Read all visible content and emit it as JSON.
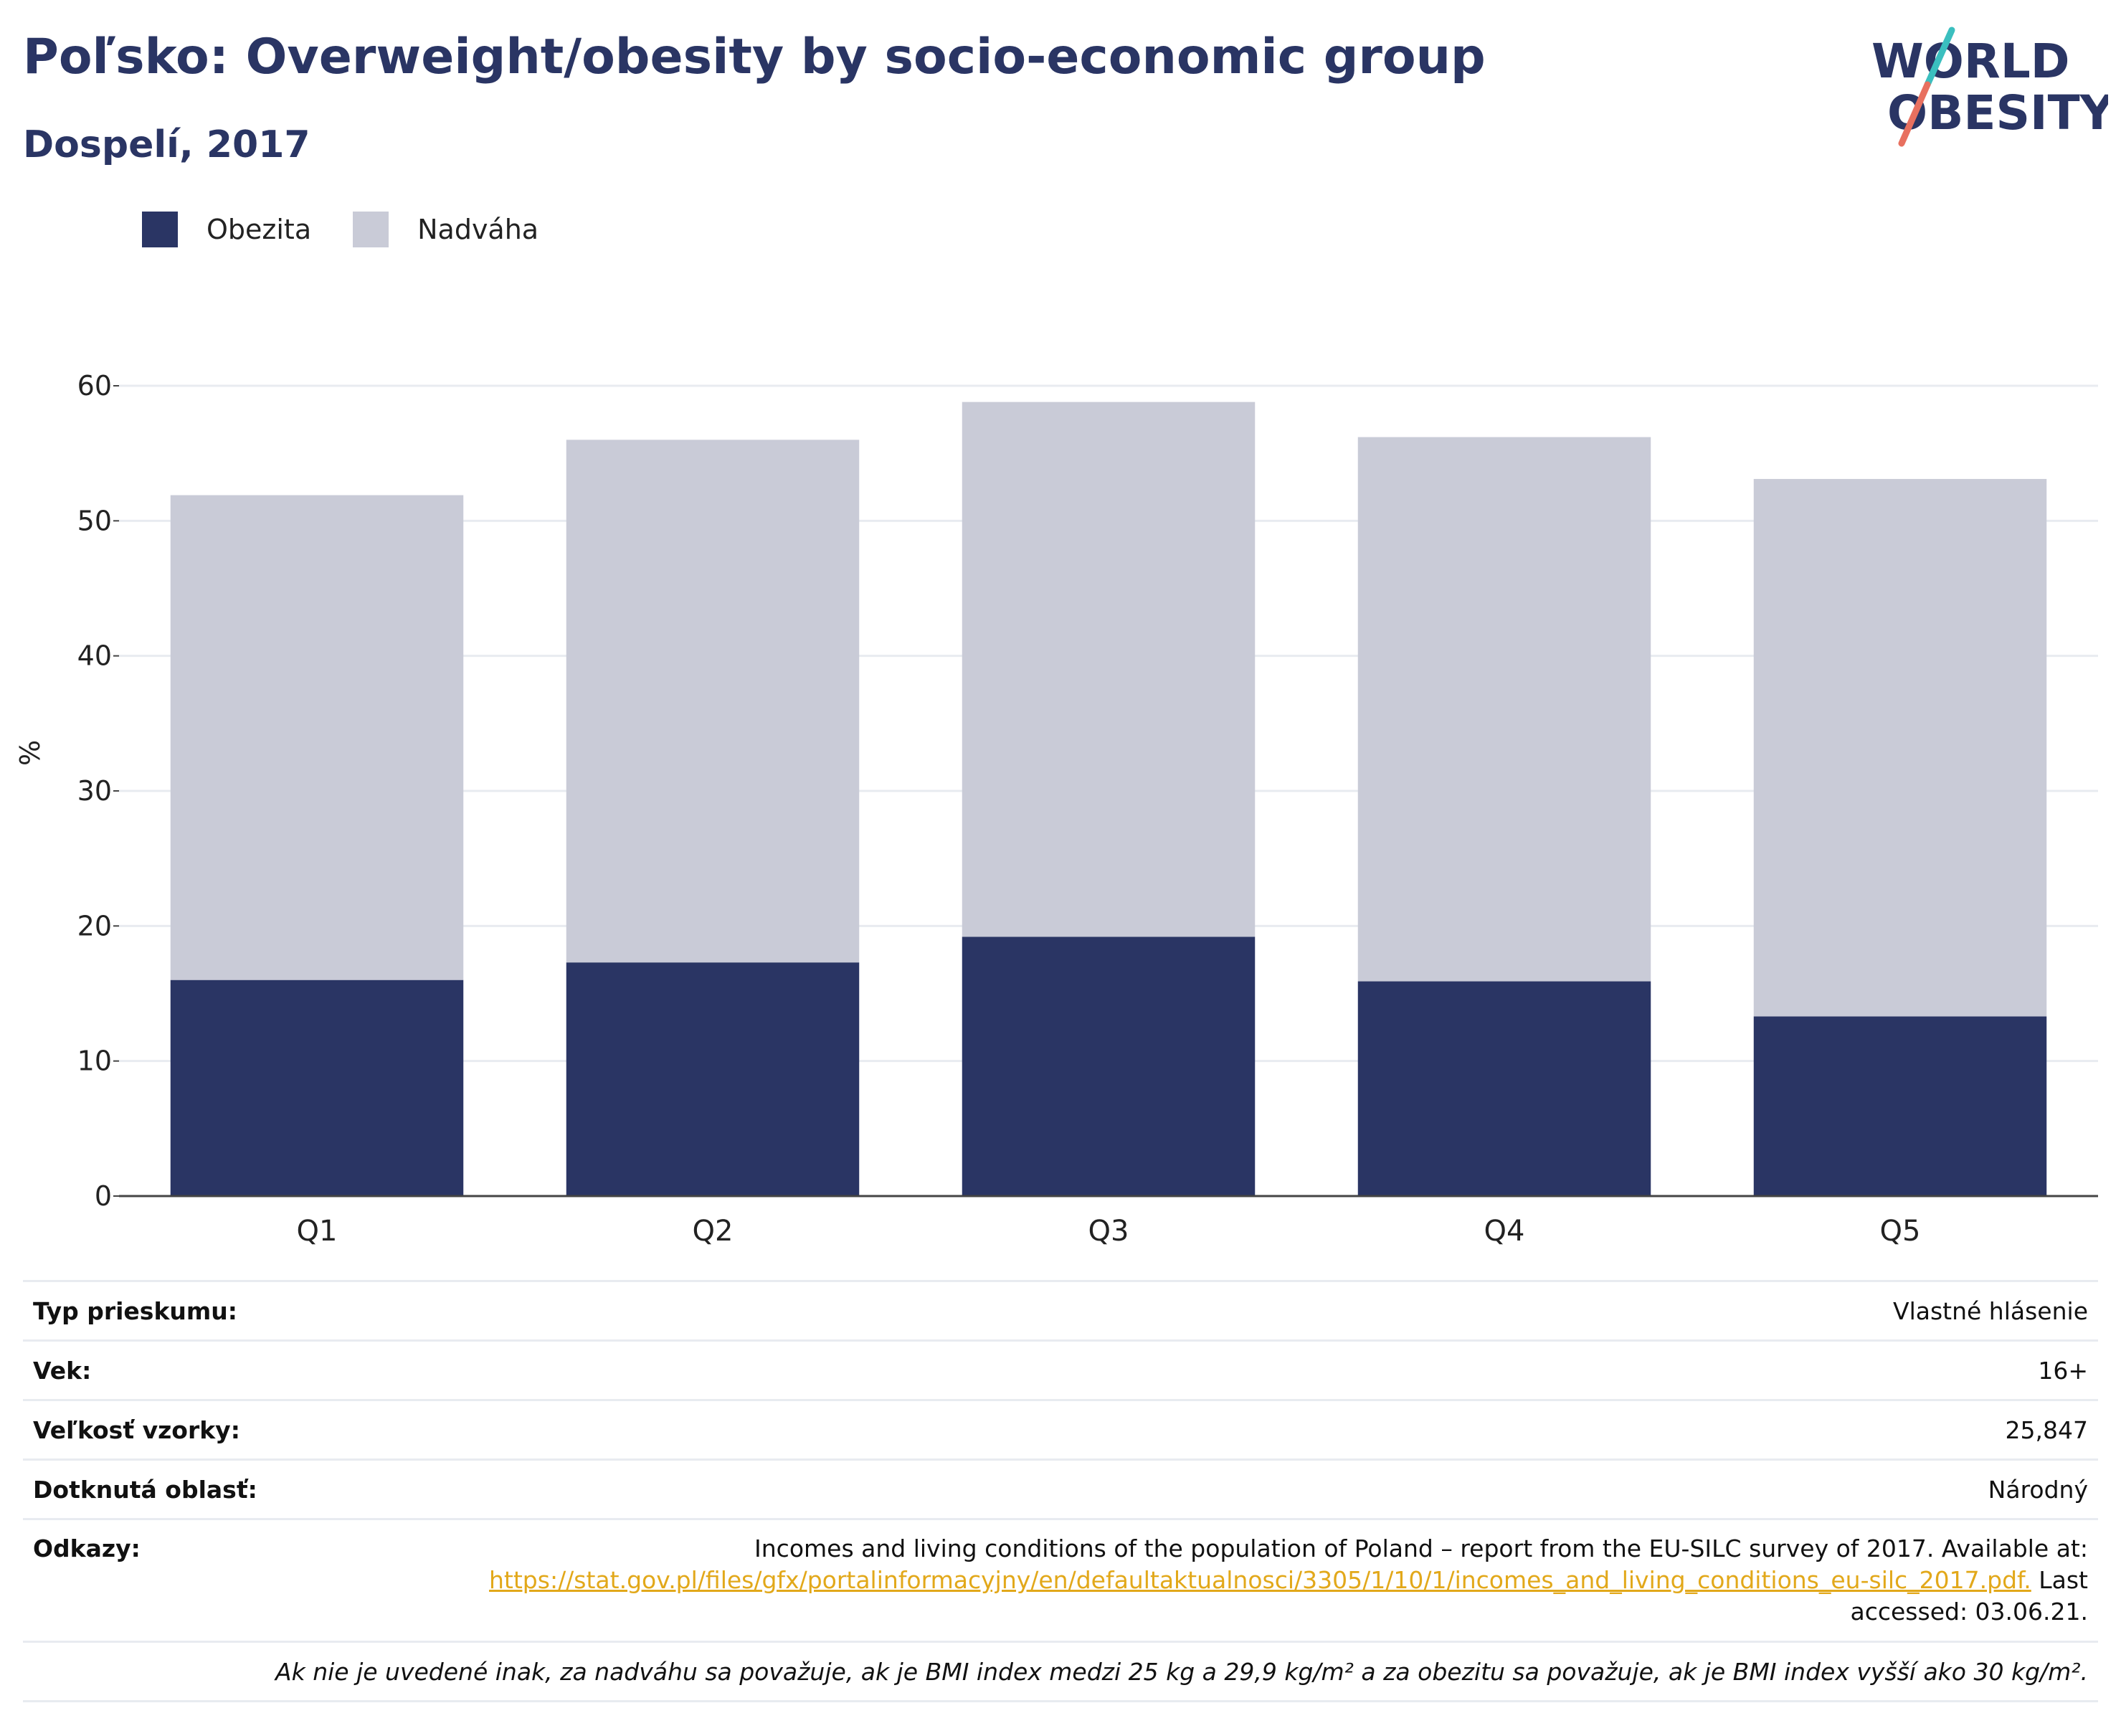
{
  "header": {
    "title": "Poľsko: Overweight/obesity by socio-economic group",
    "subtitle": "Dospelí, 2017"
  },
  "logo": {
    "line1": "WORLD",
    "line2": "OBESITY",
    "colors": {
      "text": "#2a3564",
      "slash_teal": "#3bbfbf",
      "slash_coral": "#e8705f"
    }
  },
  "legend": {
    "items": [
      {
        "label": "Obezita",
        "color": "#2a3564"
      },
      {
        "label": "Nadváha",
        "color": "#c9cbd7"
      }
    ]
  },
  "chart_data": {
    "type": "bar",
    "stacked": true,
    "categories": [
      "Q1",
      "Q2",
      "Q3",
      "Q4",
      "Q5"
    ],
    "series": [
      {
        "name": "Obezita",
        "values": [
          16.0,
          17.3,
          19.2,
          15.9,
          13.3
        ],
        "color": "#2a3564"
      },
      {
        "name": "Nadváha",
        "values": [
          35.9,
          38.7,
          39.6,
          40.3,
          39.8
        ],
        "color": "#c9cbd7"
      }
    ],
    "title": "Poľsko: Overweight/obesity by socio-economic group",
    "subtitle": "Dospelí, 2017",
    "xlabel": "",
    "ylabel": "%",
    "ylim": [
      0,
      60
    ],
    "yticks": [
      0,
      10,
      20,
      30,
      40,
      50,
      60
    ],
    "grid": true,
    "legend_position": "top-left"
  },
  "info": {
    "survey_type": {
      "label": "Typ prieskumu:",
      "value": "Vlastné hlásenie"
    },
    "age": {
      "label": "Vek:",
      "value": "16+"
    },
    "sample_size": {
      "label": "Veľkosť vzorky:",
      "value": "25,847"
    },
    "area": {
      "label": "Dotknutá oblasť:",
      "value": "Národný"
    },
    "references": {
      "label": "Odkazy:",
      "text_before": "Incomes and living conditions of the population of Poland – report from the EU-SILC survey of 2017. Available at: ",
      "link": "https://stat.gov.pl/files/gfx/portalinformacyjny/en/defaultaktualnosci/3305/1/10/1/incomes_and_living_conditions_eu-silc_2017.pdf.",
      "text_after": " Last accessed: 03.06.21."
    },
    "note": "Ak nie je uvedené inak, za nadváhu sa považuje, ak je BMI index medzi 25 kg a 29,9 kg/m² a za obezitu sa považuje, ak je BMI index vyšší ako 30 kg/m²."
  }
}
